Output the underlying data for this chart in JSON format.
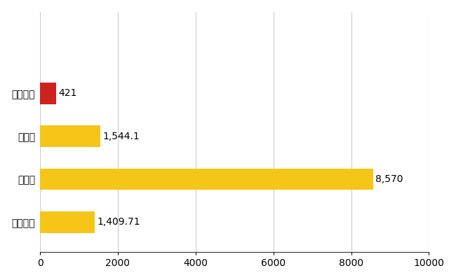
{
  "categories": [
    "波佐見町",
    "県平均",
    "県最大",
    "全国平均"
  ],
  "values": [
    421,
    1544.1,
    8570,
    1409.71
  ],
  "labels": [
    "421",
    "1,544.1",
    "8,570",
    "1,409.71"
  ],
  "bar_colors": [
    "#cc2222",
    "#f5c518",
    "#f5c518",
    "#f5c518"
  ],
  "xlim": [
    0,
    10000
  ],
  "xticks": [
    0,
    2000,
    4000,
    6000,
    8000,
    10000
  ],
  "xtick_labels": [
    "0",
    "2000",
    "4000",
    "6000",
    "8000",
    "10000"
  ],
  "background_color": "#ffffff",
  "grid_color": "#cccccc",
  "label_fontsize": 10,
  "tick_fontsize": 10,
  "bar_height": 0.5
}
